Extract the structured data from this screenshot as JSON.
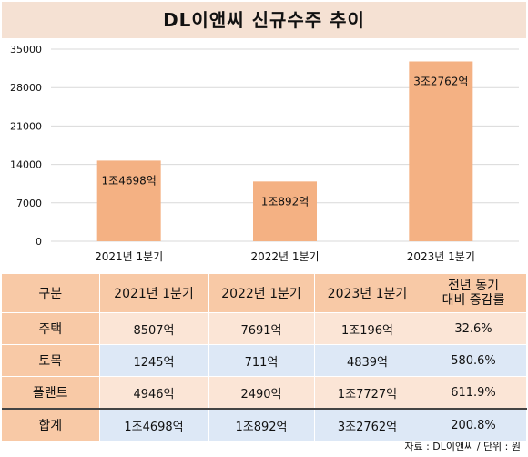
{
  "title": "DL이앤씨 신규수주 추이",
  "colors": {
    "title_bg": "#f5e1d3",
    "bar": "#f4b183",
    "header_bg": "#f8c9a6",
    "row_peach": "#fbe5d6",
    "row_blue": "#dde8f6",
    "watermark": "#f3cdb8"
  },
  "chart_data": {
    "type": "bar",
    "categories": [
      "2021년 1분기",
      "2022년 1분기",
      "2023년 1분기"
    ],
    "values": [
      14698,
      10892,
      32762
    ],
    "data_labels": [
      "1조4698억",
      "1조892억",
      "3조2762억"
    ],
    "yticks": [
      "0",
      "7000",
      "14000",
      "21000",
      "28000",
      "35000"
    ],
    "ylim": [
      0,
      35000
    ],
    "grid": true
  },
  "table": {
    "headers": [
      "구분",
      "2021년 1분기",
      "2022년 1분기",
      "2023년 1분기",
      [
        "전년 동기",
        "대비 증감률"
      ]
    ],
    "rows": [
      {
        "label": "주택",
        "cells": [
          "8507억",
          "7691억",
          "1조196억",
          "32.6%"
        ]
      },
      {
        "label": "토목",
        "cells": [
          "1245억",
          "711억",
          "4839억",
          "580.6%"
        ]
      },
      {
        "label": "플랜트",
        "cells": [
          "4946억",
          "2490억",
          "1조7727억",
          "611.9%"
        ]
      }
    ],
    "total": {
      "label": "합계",
      "cells": [
        "1조4698억",
        "1조892억",
        "3조2762억",
        "200.8%"
      ]
    }
  },
  "watermark": "datanews",
  "source": "자료 : DL이앤씨 / 단위 : 원"
}
